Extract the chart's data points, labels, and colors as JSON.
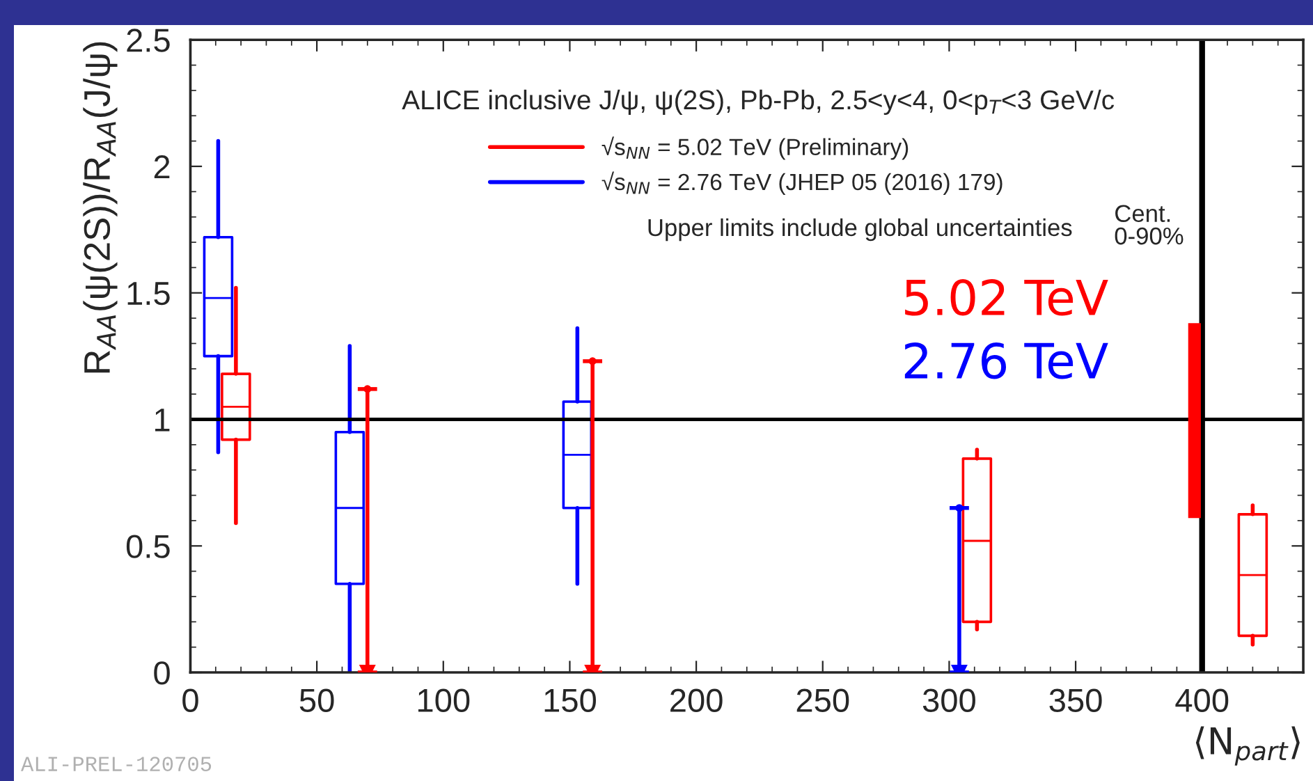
{
  "chart_data": {
    "type": "box",
    "xlabel": "⟨N$_{part}$⟩",
    "ylabel": "R$_{AA}$(ψ(2S))/R$_{AA}$(J/ψ)",
    "xlim": [
      0,
      440
    ],
    "xticks": [
      0,
      50,
      100,
      150,
      200,
      250,
      300,
      350,
      400
    ],
    "ylim": [
      0,
      2.5
    ],
    "yticks": [
      0,
      0.5,
      1,
      1.5,
      2,
      2.5
    ],
    "series": [
      {
        "name": "√s$_{NN}$ = 5.02 TeV (Preliminary)",
        "color": "#ff0000",
        "x": [
          18,
          311,
          420
        ],
        "boxes": [
          {
            "low": 0.59,
            "q1": 0.92,
            "median": 1.05,
            "q3": 1.18,
            "high": 1.52
          },
          {
            "low": 0.17,
            "q1": 0.2,
            "median": 0.52,
            "q3": 0.845,
            "high": 0.88
          },
          {
            "low": 0.11,
            "q1": 0.145,
            "median": 0.385,
            "q3": 0.625,
            "high": 0.66
          }
        ]
      },
      {
        "name": "√s$_{NN}$ = 2.76 TeV (JHEP 05 (2016) 179)",
        "color": "#0000ff",
        "x": [
          11,
          63,
          153
        ],
        "boxes": [
          {
            "low": 0.87,
            "q1": 1.25,
            "median": 1.48,
            "q3": 1.72,
            "high": 2.1
          },
          {
            "low": 0,
            "q1": 0.35,
            "median": 0.65,
            "q3": 0.95,
            "high": 1.29
          },
          {
            "low": 0.35,
            "q1": 0.65,
            "median": 0.86,
            "q3": 1.07,
            "high": 1.36
          }
        ]
      },
      {
        "type": "scatter",
        "color": "#ff0000",
        "x": [
          70,
          159
        ],
        "values": [
          1.12,
          1.23
        ],
        "errors": [
          [
            0,
            1.12
          ],
          [
            0,
            1.23
          ]
        ]
      },
      {
        "type": "scatter",
        "color": "#0000ff",
        "x": [
          304
        ],
        "values": [
          0.65
        ],
        "errors": [
          [
            0,
            0.65
          ]
        ]
      },
      {
        "type": "bar",
        "color": "#ff0000",
        "x": [
          397
        ],
        "base": [
          0.61
        ],
        "values": [
          0.77
        ]
      }
    ],
    "ref_lines": [
      {
        "axis": "y",
        "value": 1,
        "color": "#000000"
      },
      {
        "axis": "x",
        "value": 400,
        "color": "#000000"
      }
    ],
    "legend": "top",
    "annotations": [
      "ALICE inclusive J/ψ, ψ(2S), Pb-Pb, 2.5<y<4, 0<p$_{T}$<3 GeV/c",
      "Upper limits include global uncertainties",
      "5.02 TeV",
      "2.76 TeV",
      "Cent.\n0-90%",
      "ALI-PREL-120705"
    ]
  }
}
